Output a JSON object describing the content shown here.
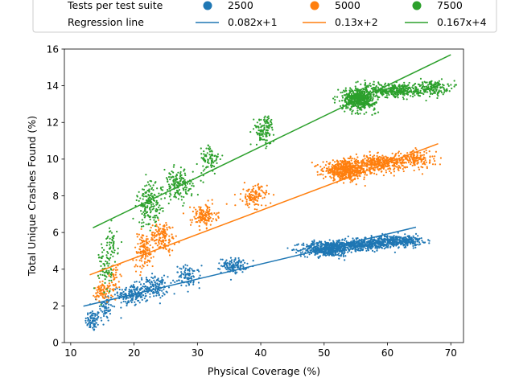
{
  "chart_data": {
    "type": "scatter",
    "xlabel": "Physical Coverage  (%)",
    "ylabel": "Total Unique Crashes Found (%)",
    "xlim": [
      9,
      72
    ],
    "ylim": [
      0,
      16
    ],
    "xticks": [
      10,
      20,
      30,
      40,
      50,
      60,
      70
    ],
    "yticks": [
      0,
      2,
      4,
      6,
      8,
      10,
      12,
      14,
      16
    ],
    "grid": false,
    "legend": {
      "placement": "top",
      "scatter_title": "Tests per test suite",
      "line_title": "Regression line"
    },
    "series": [
      {
        "name": "2500",
        "color": "#1f77b4",
        "regression_label": "0.082x+1",
        "regression": {
          "slope": 0.082,
          "intercept": 1,
          "x_range": [
            12,
            64.5
          ]
        },
        "clusters": [
          {
            "x": 13.5,
            "y": 1.2,
            "sx": 0.6,
            "sy": 0.3,
            "n": 80
          },
          {
            "x": 15.5,
            "y": 1.9,
            "sx": 0.6,
            "sy": 0.4,
            "n": 60
          },
          {
            "x": 19.5,
            "y": 2.6,
            "sx": 1.0,
            "sy": 0.3,
            "n": 150
          },
          {
            "x": 23.0,
            "y": 3.0,
            "sx": 1.2,
            "sy": 0.3,
            "n": 150
          },
          {
            "x": 28.5,
            "y": 3.6,
            "sx": 1.0,
            "sy": 0.3,
            "n": 90
          },
          {
            "x": 35.8,
            "y": 4.2,
            "sx": 1.0,
            "sy": 0.2,
            "n": 120
          },
          {
            "x": 50.5,
            "y": 5.1,
            "sx": 2.0,
            "sy": 0.2,
            "n": 500
          },
          {
            "x": 56.0,
            "y": 5.35,
            "sx": 2.5,
            "sy": 0.15,
            "n": 400
          },
          {
            "x": 61.5,
            "y": 5.55,
            "sx": 2.0,
            "sy": 0.15,
            "n": 350
          }
        ]
      },
      {
        "name": "5000",
        "color": "#ff7f0e",
        "regression_label": "0.13x+2",
        "regression": {
          "slope": 0.13,
          "intercept": 2,
          "x_range": [
            13,
            68
          ]
        },
        "clusters": [
          {
            "x": 15.0,
            "y": 2.8,
            "sx": 0.6,
            "sy": 0.3,
            "n": 80
          },
          {
            "x": 17.0,
            "y": 3.5,
            "sx": 0.5,
            "sy": 0.4,
            "n": 40
          },
          {
            "x": 21.5,
            "y": 5.0,
            "sx": 0.8,
            "sy": 0.5,
            "n": 120
          },
          {
            "x": 24.5,
            "y": 5.8,
            "sx": 1.0,
            "sy": 0.4,
            "n": 140
          },
          {
            "x": 31.0,
            "y": 6.9,
            "sx": 1.0,
            "sy": 0.3,
            "n": 140
          },
          {
            "x": 39.0,
            "y": 8.0,
            "sx": 1.0,
            "sy": 0.3,
            "n": 120
          },
          {
            "x": 53.5,
            "y": 9.4,
            "sx": 1.8,
            "sy": 0.25,
            "n": 550
          },
          {
            "x": 59.0,
            "y": 9.8,
            "sx": 2.0,
            "sy": 0.2,
            "n": 350
          },
          {
            "x": 64.5,
            "y": 10.0,
            "sx": 1.5,
            "sy": 0.25,
            "n": 150
          }
        ]
      },
      {
        "name": "7500",
        "color": "#2ca02c",
        "regression_label": "0.167x+4",
        "regression": {
          "slope": 0.167,
          "intercept": 4,
          "x_range": [
            13.5,
            70
          ]
        },
        "clusters": [
          {
            "x": 15.5,
            "y": 4.0,
            "sx": 0.5,
            "sy": 0.7,
            "n": 70
          },
          {
            "x": 16.5,
            "y": 5.3,
            "sx": 0.5,
            "sy": 0.5,
            "n": 50
          },
          {
            "x": 22.5,
            "y": 7.5,
            "sx": 1.0,
            "sy": 0.6,
            "n": 170
          },
          {
            "x": 27.0,
            "y": 8.6,
            "sx": 1.2,
            "sy": 0.4,
            "n": 160
          },
          {
            "x": 32.0,
            "y": 10.0,
            "sx": 0.8,
            "sy": 0.4,
            "n": 80
          },
          {
            "x": 40.5,
            "y": 11.6,
            "sx": 0.8,
            "sy": 0.4,
            "n": 110
          },
          {
            "x": 55.5,
            "y": 13.3,
            "sx": 1.3,
            "sy": 0.3,
            "n": 550
          },
          {
            "x": 61.5,
            "y": 13.75,
            "sx": 2.0,
            "sy": 0.2,
            "n": 350
          },
          {
            "x": 67.0,
            "y": 13.9,
            "sx": 1.3,
            "sy": 0.2,
            "n": 150
          }
        ]
      }
    ]
  }
}
